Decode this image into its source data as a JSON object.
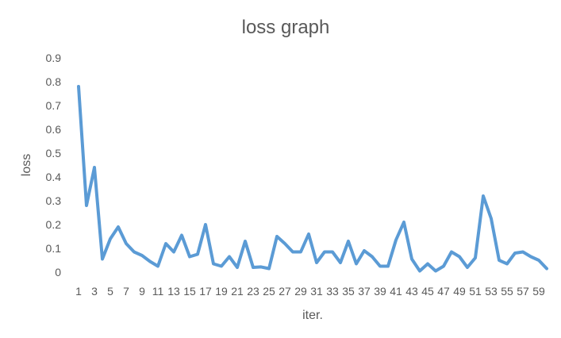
{
  "chart_data": {
    "type": "line",
    "title": "loss graph",
    "xlabel": "iter.",
    "ylabel": "loss",
    "ylim": [
      0,
      0.9
    ],
    "y_ticks": [
      "0",
      "0.1",
      "0.2",
      "0.3",
      "0.4",
      "0.5",
      "0.6",
      "0.7",
      "0.8",
      "0.9"
    ],
    "x": [
      1,
      2,
      3,
      4,
      5,
      6,
      7,
      8,
      9,
      10,
      11,
      12,
      13,
      14,
      15,
      16,
      17,
      18,
      19,
      20,
      21,
      22,
      23,
      24,
      25,
      26,
      27,
      28,
      29,
      30,
      31,
      32,
      33,
      34,
      35,
      36,
      37,
      38,
      39,
      40,
      41,
      42,
      43,
      44,
      45,
      46,
      47,
      48,
      49,
      50,
      51,
      52,
      53,
      54,
      55,
      56,
      57,
      58,
      59,
      60
    ],
    "x_tick_labels": [
      "1",
      "3",
      "5",
      "7",
      "9",
      "11",
      "13",
      "15",
      "17",
      "19",
      "21",
      "23",
      "25",
      "27",
      "29",
      "31",
      "33",
      "35",
      "37",
      "39",
      "41",
      "43",
      "45",
      "47",
      "49",
      "51",
      "53",
      "55",
      "57",
      "59"
    ],
    "series": [
      {
        "values": [
          0.78,
          0.28,
          0.44,
          0.055,
          0.14,
          0.19,
          0.12,
          0.085,
          0.07,
          0.045,
          0.025,
          0.12,
          0.085,
          0.155,
          0.065,
          0.075,
          0.2,
          0.035,
          0.025,
          0.065,
          0.02,
          0.13,
          0.02,
          0.022,
          0.015,
          0.15,
          0.12,
          0.085,
          0.085,
          0.16,
          0.04,
          0.085,
          0.085,
          0.04,
          0.13,
          0.035,
          0.09,
          0.065,
          0.025,
          0.025,
          0.135,
          0.21,
          0.055,
          0.005,
          0.035,
          0.005,
          0.025,
          0.085,
          0.065,
          0.02,
          0.06,
          0.32,
          0.225,
          0.05,
          0.035,
          0.08,
          0.085,
          0.065,
          0.05,
          0.015
        ],
        "color": "#5b9bd5"
      }
    ],
    "gridlines": false,
    "legend": "none"
  }
}
